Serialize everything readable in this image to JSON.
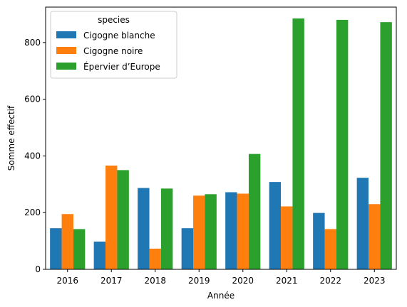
{
  "chart_data": {
    "type": "bar",
    "xlabel": "Année",
    "ylabel": "Somme effectif",
    "categories": [
      "2016",
      "2017",
      "2018",
      "2019",
      "2020",
      "2021",
      "2022",
      "2023"
    ],
    "ylim": [
      0,
      925
    ],
    "yticks": [
      0,
      200,
      400,
      600,
      800
    ],
    "grid": false,
    "legend": {
      "title": "species",
      "position": "top-left"
    },
    "series": [
      {
        "name": "Cigogne blanche",
        "color": "#1f77b4",
        "values": [
          145,
          98,
          287,
          145,
          272,
          308,
          199,
          323
        ]
      },
      {
        "name": "Cigogne noire",
        "color": "#ff7f0e",
        "values": [
          195,
          366,
          73,
          260,
          267,
          222,
          142,
          230
        ]
      },
      {
        "name": "Épervier d’Europe",
        "color": "#2ca02c",
        "values": [
          142,
          350,
          285,
          265,
          407,
          885,
          880,
          872
        ]
      }
    ]
  }
}
